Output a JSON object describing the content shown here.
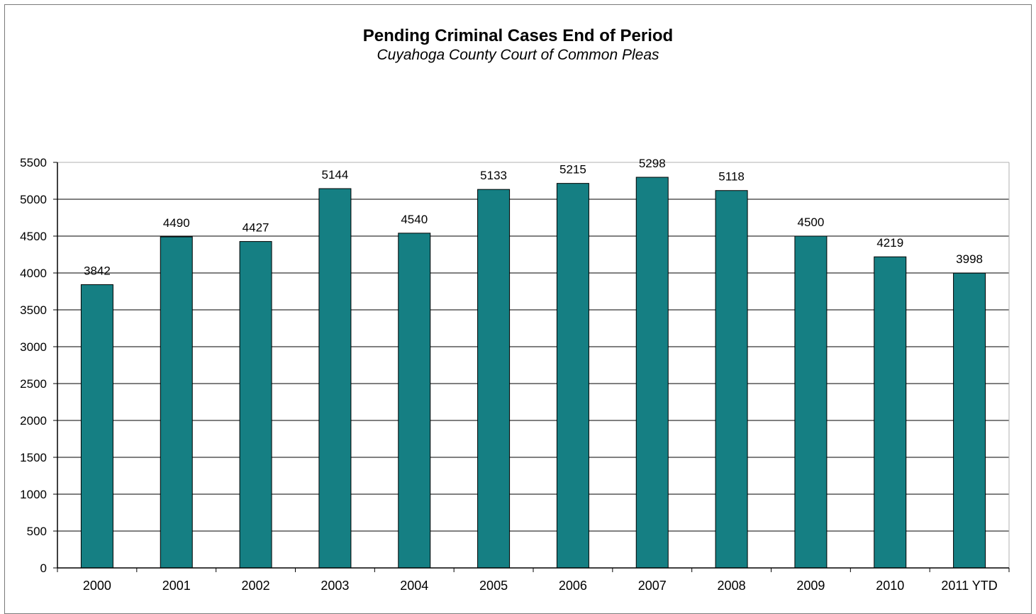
{
  "chart_data": {
    "type": "bar",
    "title": "Pending Criminal Cases End of Period",
    "subtitle": "Cuyahoga County Court of Common Pleas",
    "categories": [
      "2000",
      "2001",
      "2002",
      "2003",
      "2004",
      "2005",
      "2006",
      "2007",
      "2008",
      "2009",
      "2010",
      "2011 YTD"
    ],
    "values": [
      3842,
      4490,
      4427,
      5144,
      4540,
      5133,
      5215,
      5298,
      5118,
      4500,
      4219,
      3998
    ],
    "data_labels": [
      "3842",
      "4490",
      "4427",
      "5144",
      "4540",
      "5133",
      "5215",
      "5298",
      "5118",
      "4500",
      "4219",
      "3998"
    ],
    "yticks": [
      0,
      500,
      1000,
      1500,
      2000,
      2500,
      3000,
      3500,
      4000,
      4500,
      5000,
      5500
    ],
    "ylim": [
      0,
      5500
    ],
    "xlabel": "",
    "ylabel": "",
    "grid": true,
    "legend": "none",
    "colors": {
      "bar": "#157f83",
      "bar_border": "#000000",
      "grid": "#000000"
    }
  }
}
